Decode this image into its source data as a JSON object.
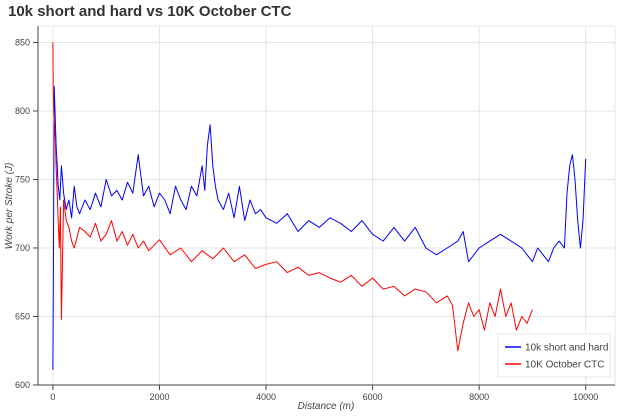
{
  "chart_data": {
    "type": "line",
    "title": "10k short and hard vs 10K October CTC",
    "xlabel": "Distance (m)",
    "ylabel": "Work per Stroke (J)",
    "xlim": [
      -280,
      10550
    ],
    "ylim": [
      600,
      862
    ],
    "x_ticks": [
      0,
      2000,
      4000,
      6000,
      8000,
      10000
    ],
    "y_ticks": [
      600,
      650,
      700,
      750,
      800,
      850
    ],
    "grid": true,
    "legend_position": "bottom-right",
    "series": [
      {
        "name": "10k short and hard",
        "color": "#0000ff",
        "x": [
          0,
          10,
          25,
          40,
          60,
          80,
          100,
          130,
          160,
          200,
          250,
          300,
          350,
          400,
          450,
          500,
          600,
          700,
          800,
          900,
          1000,
          1100,
          1200,
          1300,
          1400,
          1500,
          1600,
          1700,
          1800,
          1900,
          2000,
          2100,
          2200,
          2300,
          2400,
          2500,
          2600,
          2700,
          2800,
          2850,
          2900,
          2950,
          3000,
          3050,
          3100,
          3200,
          3300,
          3400,
          3500,
          3600,
          3700,
          3800,
          3900,
          4000,
          4200,
          4400,
          4600,
          4800,
          5000,
          5200,
          5400,
          5600,
          5800,
          6000,
          6200,
          6400,
          6600,
          6800,
          7000,
          7200,
          7400,
          7600,
          7700,
          7800,
          8000,
          8200,
          8400,
          8600,
          8800,
          9000,
          9100,
          9200,
          9300,
          9400,
          9500,
          9600,
          9650,
          9700,
          9750,
          9800,
          9850,
          9900,
          9950,
          10000
        ],
        "y": [
          611,
          700,
          818,
          800,
          775,
          760,
          745,
          735,
          760,
          740,
          728,
          735,
          722,
          745,
          730,
          725,
          735,
          728,
          740,
          730,
          750,
          738,
          742,
          735,
          748,
          740,
          768,
          738,
          745,
          730,
          740,
          735,
          725,
          745,
          735,
          728,
          745,
          738,
          760,
          742,
          775,
          790,
          760,
          745,
          735,
          728,
          740,
          722,
          745,
          720,
          735,
          725,
          728,
          722,
          718,
          725,
          712,
          720,
          715,
          722,
          718,
          712,
          720,
          710,
          705,
          715,
          705,
          715,
          700,
          695,
          700,
          705,
          712,
          690,
          700,
          705,
          710,
          705,
          700,
          690,
          700,
          695,
          690,
          700,
          705,
          700,
          740,
          760,
          768,
          750,
          720,
          700,
          720,
          765
        ]
      },
      {
        "name": "10K October CTC",
        "color": "#ff0000",
        "x": [
          0,
          5,
          15,
          30,
          45,
          60,
          80,
          100,
          120,
          140,
          160,
          200,
          250,
          300,
          350,
          400,
          500,
          600,
          700,
          800,
          900,
          1000,
          1100,
          1200,
          1300,
          1400,
          1500,
          1600,
          1700,
          1800,
          1900,
          2000,
          2200,
          2400,
          2600,
          2800,
          3000,
          3200,
          3400,
          3600,
          3800,
          4000,
          4200,
          4400,
          4600,
          4800,
          5000,
          5200,
          5400,
          5600,
          5800,
          6000,
          6200,
          6400,
          6600,
          6800,
          7000,
          7200,
          7400,
          7500,
          7600,
          7700,
          7800,
          7900,
          8000,
          8100,
          8200,
          8300,
          8400,
          8500,
          8600,
          8700,
          8800,
          8900,
          9000
        ],
        "y": [
          850,
          820,
          800,
          790,
          780,
          760,
          740,
          720,
          700,
          730,
          648,
          735,
          720,
          715,
          705,
          700,
          715,
          712,
          708,
          718,
          705,
          710,
          720,
          705,
          712,
          702,
          710,
          700,
          705,
          698,
          702,
          706,
          695,
          700,
          690,
          698,
          692,
          700,
          690,
          695,
          685,
          688,
          690,
          682,
          686,
          680,
          682,
          678,
          675,
          680,
          672,
          678,
          670,
          672,
          665,
          670,
          668,
          660,
          665,
          658,
          625,
          645,
          660,
          650,
          655,
          640,
          660,
          650,
          670,
          650,
          660,
          640,
          650,
          645,
          655
        ]
      }
    ]
  }
}
